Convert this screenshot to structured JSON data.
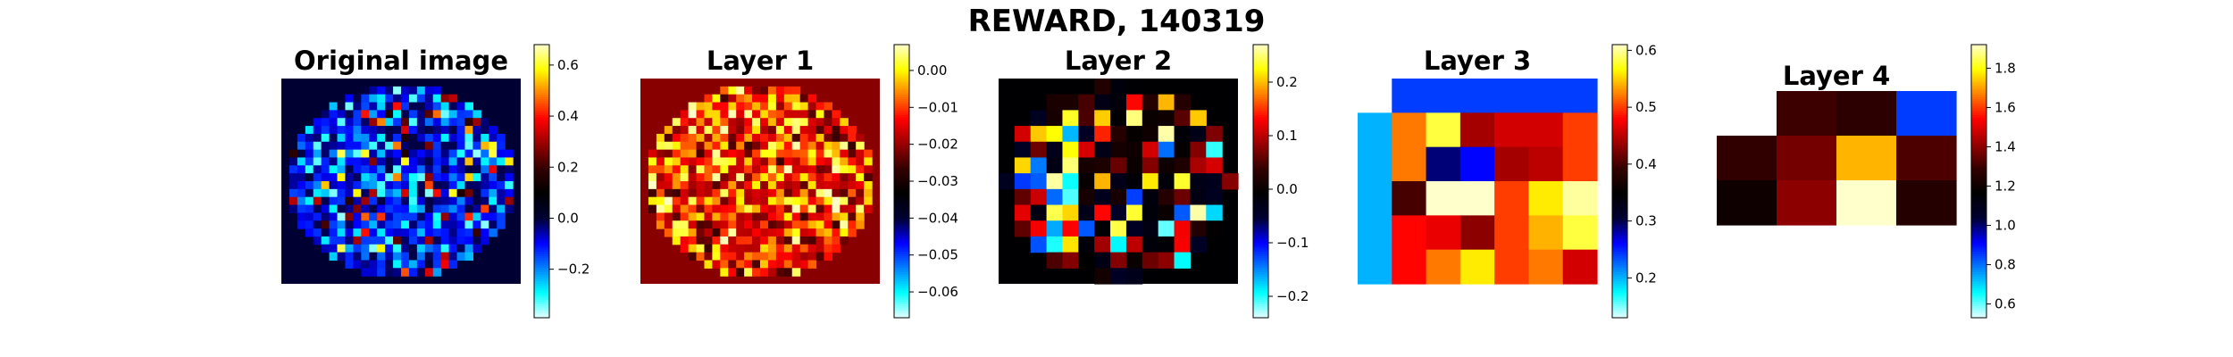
{
  "suptitle": "REWARD, 140319",
  "colormap": {
    "name": "custom diverging (cyan-blue-black-red-yellow)",
    "stops": [
      "#e6ffff",
      "#00ffff",
      "#0080ff",
      "#0000ff",
      "#000033",
      "#000000",
      "#330000",
      "#990000",
      "#ff0000",
      "#ff8000",
      "#ffff00",
      "#ffffcc"
    ]
  },
  "chart_data": [
    {
      "type": "heatmap",
      "title": "Original image",
      "grid": "30 x 26 pixels",
      "background_value": 0.0,
      "vmin": -0.39,
      "vmax": 0.68,
      "colorbar_ticks": [
        {
          "value": -0.2,
          "label": "−0.2"
        },
        {
          "value": 0.0,
          "label": "0.0"
        },
        {
          "value": 0.2,
          "label": "0.2"
        },
        {
          "value": 0.4,
          "label": "0.4"
        },
        {
          "value": 0.6,
          "label": "0.6"
        }
      ]
    },
    {
      "type": "heatmap",
      "title": "Layer 1",
      "grid": "30 x 26 pixels",
      "background_value": -0.021,
      "vmin": -0.067,
      "vmax": 0.007,
      "colorbar_ticks": [
        {
          "value": -0.06,
          "label": "−0.06"
        },
        {
          "value": -0.05,
          "label": "−0.05"
        },
        {
          "value": -0.04,
          "label": "−0.04"
        },
        {
          "value": -0.03,
          "label": "−0.03"
        },
        {
          "value": -0.02,
          "label": "−0.02"
        },
        {
          "value": -0.01,
          "label": "−0.01"
        },
        {
          "value": 0.0,
          "label": "0.00"
        }
      ]
    },
    {
      "type": "heatmap",
      "title": "Layer 2",
      "grid": "15 x 13 pixels",
      "background_value": -0.01,
      "vmin": -0.24,
      "vmax": 0.27,
      "colorbar_ticks": [
        {
          "value": -0.2,
          "label": "−0.2"
        },
        {
          "value": -0.1,
          "label": "−0.1"
        },
        {
          "value": 0.0,
          "label": "0.0"
        },
        {
          "value": 0.1,
          "label": "0.1"
        },
        {
          "value": 0.2,
          "label": "0.2"
        }
      ]
    },
    {
      "type": "heatmap",
      "title": "Layer 3",
      "vmin": 0.13,
      "vmax": 0.61,
      "rows": 6,
      "cols": 7,
      "values": [
        [
          null,
          0.24,
          0.24,
          0.24,
          0.24,
          0.24,
          0.24
        ],
        [
          0.2,
          0.52,
          0.58,
          0.44,
          0.46,
          0.46,
          0.5
        ],
        [
          0.2,
          0.52,
          0.29,
          0.26,
          0.44,
          0.45,
          0.5
        ],
        [
          0.2,
          0.4,
          0.61,
          0.61,
          0.5,
          0.56,
          0.6
        ],
        [
          0.2,
          0.48,
          0.47,
          0.43,
          0.5,
          0.54,
          0.58
        ],
        [
          0.2,
          0.48,
          0.52,
          0.56,
          0.5,
          0.52,
          0.46
        ]
      ],
      "colorbar_ticks": [
        {
          "value": 0.2,
          "label": "0.2"
        },
        {
          "value": 0.3,
          "label": "0.3"
        },
        {
          "value": 0.4,
          "label": "0.4"
        },
        {
          "value": 0.5,
          "label": "0.5"
        },
        {
          "value": 0.6,
          "label": "0.6"
        }
      ]
    },
    {
      "type": "heatmap",
      "title": "Layer 4",
      "vmin": 0.53,
      "vmax": 1.92,
      "rows": 4,
      "cols": 4,
      "values": [
        [
          null,
          1.3,
          1.27,
          0.85
        ],
        [
          1.28,
          1.37,
          1.72,
          1.32
        ],
        [
          1.2,
          1.4,
          1.92,
          1.25
        ],
        [
          null,
          null,
          null,
          null
        ]
      ],
      "colorbar_ticks": [
        {
          "value": 0.6,
          "label": "0.6"
        },
        {
          "value": 0.8,
          "label": "0.8"
        },
        {
          "value": 1.0,
          "label": "1.0"
        },
        {
          "value": 1.2,
          "label": "1.2"
        },
        {
          "value": 1.4,
          "label": "1.4"
        },
        {
          "value": 1.6,
          "label": "1.6"
        },
        {
          "value": 1.8,
          "label": "1.8"
        }
      ]
    }
  ]
}
